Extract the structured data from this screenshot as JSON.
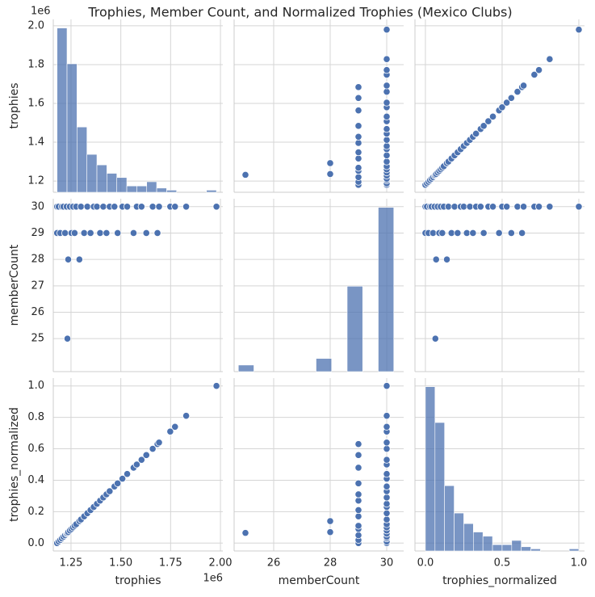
{
  "chart_data": {
    "type": "pairplot",
    "title": "Trophies, Member Count, and Normalized Trophies (Mexico Clubs)",
    "color": "#4c72b0",
    "grid": true,
    "variables": [
      {
        "name": "trophies",
        "values": [
          1180000,
          1180000,
          1188000,
          1196000,
          1204000,
          1212000,
          1220000,
          1228000,
          1232000,
          1236000,
          1244000,
          1252000,
          1260000,
          1268000,
          1276000,
          1292000,
          1300000,
          1316000,
          1332000,
          1348000,
          1364000,
          1380000,
          1396000,
          1412000,
          1428000,
          1444000,
          1468000,
          1484000,
          1508000,
          1532000,
          1564000,
          1580000,
          1604000,
          1628000,
          1660000,
          1684000,
          1692000,
          1748000,
          1772000,
          1828000,
          1980000
        ],
        "xlim": [
          1161000,
          2012000
        ],
        "xticks": [
          {
            "value": 1250000,
            "label": "1.25"
          },
          {
            "value": 1500000,
            "label": "1.50"
          },
          {
            "value": 1750000,
            "label": "1.75"
          },
          {
            "value": 2000000,
            "label": "2.00"
          }
        ],
        "ylim": [
          1142000,
          2033000
        ],
        "yticks": [
          {
            "value": 1200000,
            "label": "1.2"
          },
          {
            "value": 1400000,
            "label": "1.4"
          },
          {
            "value": 1600000,
            "label": "1.6"
          },
          {
            "value": 1800000,
            "label": "1.8"
          },
          {
            "value": 2000000,
            "label": "2.0"
          }
        ],
        "offset": "1e6"
      },
      {
        "name": "memberCount",
        "values": [
          30,
          29,
          30,
          29,
          30,
          30,
          29,
          30,
          25,
          28,
          30,
          29,
          30,
          29,
          30,
          28,
          30,
          29,
          30,
          29,
          30,
          30,
          29,
          30,
          29,
          30,
          30,
          29,
          30,
          30,
          29,
          30,
          30,
          29,
          30,
          29,
          30,
          30,
          30,
          30,
          30
        ],
        "xlim": [
          24.6,
          30.6
        ],
        "xticks": [
          26,
          28,
          30
        ],
        "ylim": [
          23.75,
          30.3
        ],
        "yticks": [
          25,
          26,
          27,
          28,
          29,
          30
        ]
      },
      {
        "name": "trophies_normalized",
        "values": [
          0,
          0,
          0.01,
          0.02,
          0.03,
          0.04,
          0.05,
          0.06,
          0.065,
          0.07,
          0.08,
          0.09,
          0.1,
          0.11,
          0.12,
          0.14,
          0.15,
          0.17,
          0.19,
          0.21,
          0.23,
          0.25,
          0.27,
          0.29,
          0.31,
          0.33,
          0.36,
          0.38,
          0.41,
          0.44,
          0.48,
          0.5,
          0.53,
          0.56,
          0.6,
          0.63,
          0.64,
          0.71,
          0.74,
          0.81,
          1.0
        ],
        "xlim": [
          -0.068,
          1.037
        ],
        "xticks": [
          {
            "value": 0,
            "label": "0.0"
          },
          {
            "value": 0.5,
            "label": "0.5"
          },
          {
            "value": 1,
            "label": "1.0"
          }
        ],
        "ylim": [
          -0.05,
          1.05
        ],
        "yticks": [
          {
            "value": 0,
            "label": "0.0"
          },
          {
            "value": 0.2,
            "label": "0.2"
          },
          {
            "value": 0.4,
            "label": "0.4"
          },
          {
            "value": 0.6,
            "label": "0.6"
          },
          {
            "value": 0.8,
            "label": "0.8"
          },
          {
            "value": 1,
            "label": "1.0"
          }
        ]
      }
    ],
    "histograms": [
      {
        "bins": [
          1180000,
          1230000,
          1280000,
          1330000,
          1380000,
          1430000,
          1480000,
          1530000,
          1580000,
          1630000,
          1680000,
          1730000,
          1780000,
          1830000,
          1880000,
          1930000,
          1980000
        ],
        "counts": [
          78,
          61,
          31,
          18,
          13,
          9,
          7,
          3,
          3,
          5,
          2,
          1,
          0,
          0,
          0,
          1
        ]
      },
      {
        "bins": [
          24.75,
          25.3,
          25.85,
          26.4,
          26.95,
          27.5,
          28.05,
          28.6,
          29.15,
          29.7,
          30.25
        ],
        "counts": [
          1,
          0,
          0,
          0,
          0,
          2,
          0,
          13,
          0,
          25
        ]
      },
      {
        "bins": [
          0,
          0.0625,
          0.125,
          0.1875,
          0.25,
          0.3125,
          0.375,
          0.4375,
          0.5,
          0.5625,
          0.625,
          0.6875,
          0.75,
          0.8125,
          0.875,
          0.9375,
          1
        ],
        "counts": [
          78,
          61,
          31,
          18,
          13,
          9,
          7,
          3,
          3,
          5,
          2,
          1,
          0,
          0,
          0,
          1
        ]
      }
    ]
  }
}
